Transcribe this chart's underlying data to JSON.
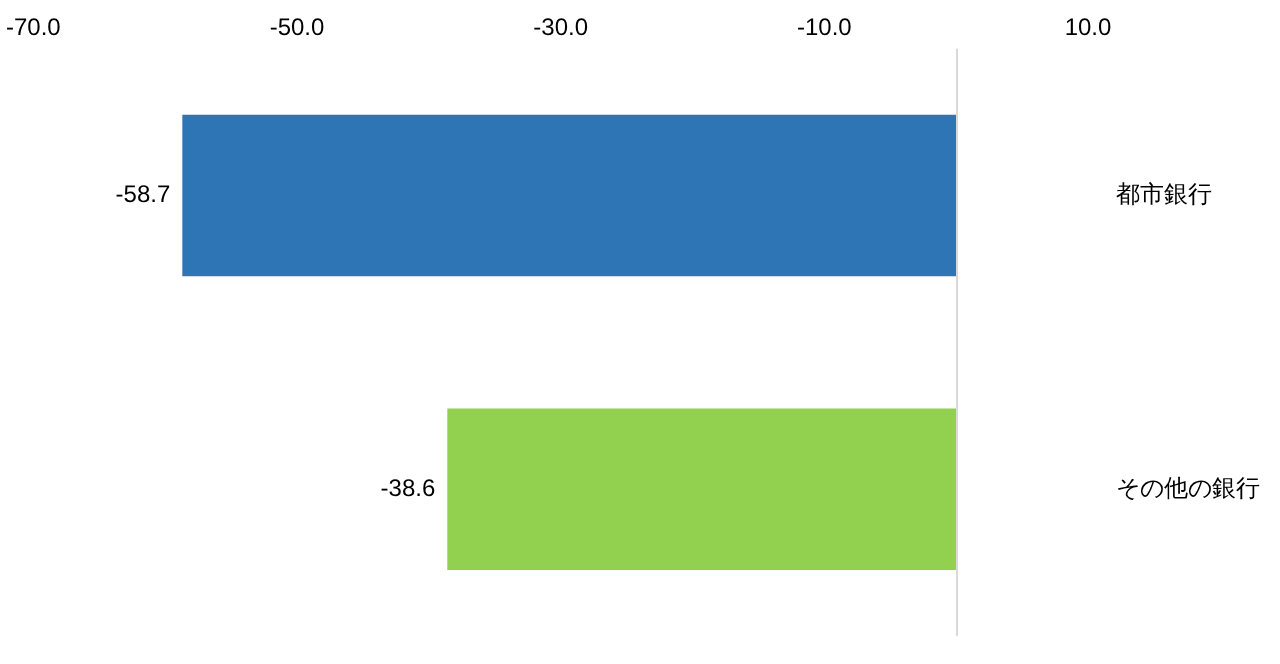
{
  "chart_data": {
    "type": "bar",
    "orientation": "horizontal",
    "categories": [
      "都市銀行",
      "その他の銀行"
    ],
    "values": [
      -58.7,
      -38.6
    ],
    "colors": [
      "#2e75b6",
      "#92d050"
    ],
    "data_labels": true,
    "grid": false,
    "legend": false,
    "xlim": [
      -70,
      10
    ],
    "xticks": [
      {
        "value": -70,
        "label": "-70.0"
      },
      {
        "value": -50,
        "label": "-50.0"
      },
      {
        "value": -30,
        "label": "-30.0"
      },
      {
        "value": -10,
        "label": "-10.0"
      },
      {
        "value": 10,
        "label": "10.0"
      }
    ]
  }
}
